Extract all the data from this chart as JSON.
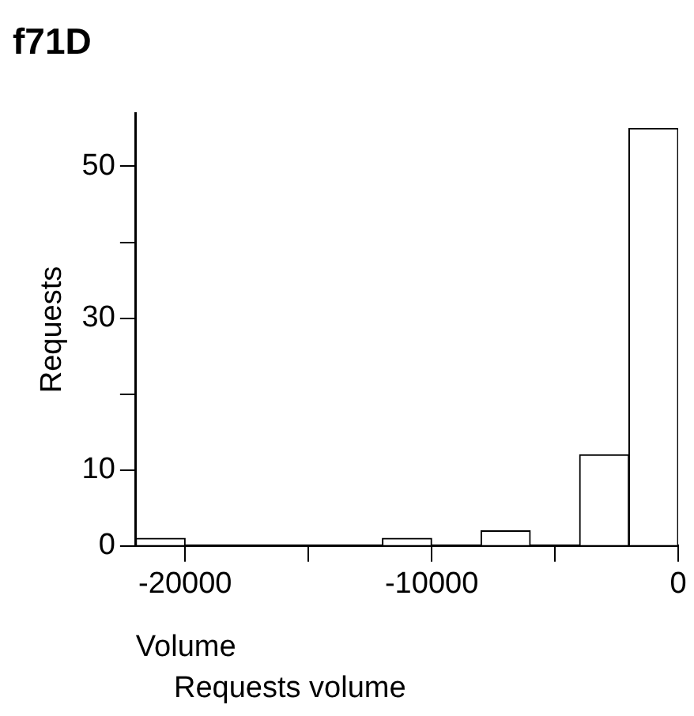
{
  "chart_data": {
    "type": "histogram",
    "title": "f71D",
    "xlabel": "Volume",
    "ylabel": "Requests",
    "annotations": [
      "Requests volume"
    ],
    "bins": [
      -22000,
      -20000,
      -18000,
      -16000,
      -14000,
      -12000,
      -10000,
      -8000,
      -6000,
      -4000,
      -2000,
      0
    ],
    "values": [
      1,
      0,
      0,
      0,
      0,
      1,
      0,
      2,
      0,
      12,
      55
    ],
    "color": "#ffffff",
    "xlim": [
      -22000,
      0
    ],
    "ylim": [
      0,
      57
    ],
    "xticks": [
      -20000,
      {
        "value": -15000,
        "label": null
      },
      -10000,
      {
        "value": -5000,
        "label": null
      },
      0
    ],
    "yticks": [
      0,
      10,
      {
        "value": 20,
        "label": null
      },
      30,
      {
        "value": 40,
        "label": null
      },
      50
    ],
    "grid": false,
    "legend": false
  }
}
